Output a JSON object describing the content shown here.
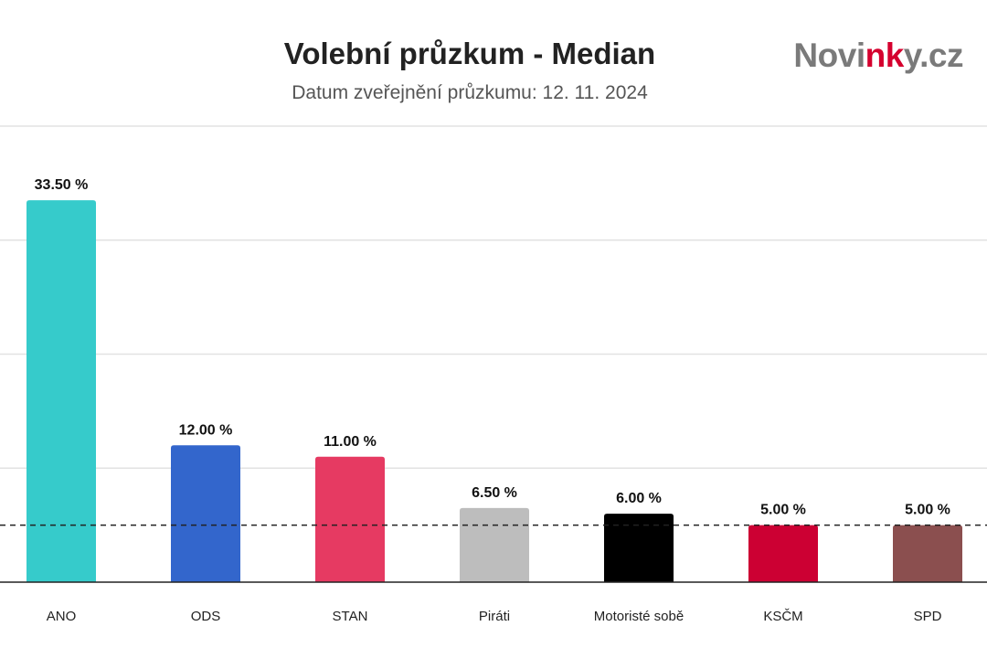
{
  "header": {
    "title": "Volební průzkum - Median",
    "subtitle": "Datum zveřejnění průzkumu: 12. 11. 2024"
  },
  "logo": {
    "text_start": "Novi",
    "text_accent": "nk",
    "text_end": "y.cz",
    "accent_color": "#d5002e"
  },
  "chart_data": {
    "type": "bar",
    "title": "Volební průzkum - Median",
    "subtitle": "Datum zveřejnění průzkumu: 12. 11. 2024",
    "xlabel": "",
    "ylabel": "",
    "categories": [
      "ANO",
      "ODS",
      "STAN",
      "Piráti",
      "Motoristé sobě",
      "KSČM",
      "SPD"
    ],
    "values": [
      33.5,
      12.0,
      11.0,
      6.5,
      6.0,
      5.0,
      5.0
    ],
    "value_labels": [
      "33.50 %",
      "12.00 %",
      "11.00 %",
      "6.50 %",
      "6.00 %",
      "5.00 %",
      "5.00 %"
    ],
    "colors": [
      "#36cbcb",
      "#3366cc",
      "#e63a62",
      "#bdbdbd",
      "#000000",
      "#cc0033",
      "#8b4f4f"
    ],
    "ylim": [
      0,
      40
    ],
    "gridlines": [
      10,
      20,
      30,
      40
    ],
    "threshold": 5,
    "threshold_style": "dashed",
    "grid": true,
    "legend": "none"
  }
}
